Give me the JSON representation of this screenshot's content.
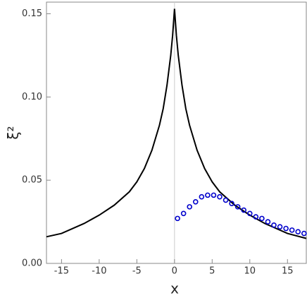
{
  "chart_data": {
    "type": "line_scatter",
    "xlabel": "x",
    "ylabel": "ξ²",
    "xlim": [
      -17,
      17.5
    ],
    "ylim": [
      0,
      0.157
    ],
    "xticks": [
      -15,
      -10,
      -5,
      0,
      5,
      10,
      15
    ],
    "yticks": [
      {
        "value": 0,
        "label": "0.00"
      },
      0.05,
      {
        "value": 0.1,
        "label": "0.10"
      },
      0.15
    ],
    "series": [
      {
        "kind": "line",
        "color": "#000000",
        "x": [
          -17,
          -15,
          -12,
          -10,
          -8,
          -6,
          -5,
          -4,
          -3,
          -2,
          -1.5,
          -1,
          -0.5,
          -0.25,
          0,
          0.25,
          0.5,
          1,
          1.5,
          2,
          3,
          4,
          5,
          6,
          8,
          10,
          12,
          15,
          17.5
        ],
        "values": [
          0.016,
          0.018,
          0.024,
          0.029,
          0.035,
          0.043,
          0.049,
          0.057,
          0.068,
          0.083,
          0.093,
          0.107,
          0.125,
          0.137,
          0.153,
          0.137,
          0.125,
          0.107,
          0.093,
          0.083,
          0.068,
          0.057,
          0.049,
          0.043,
          0.035,
          0.029,
          0.024,
          0.018,
          0.015
        ]
      },
      {
        "kind": "scatter",
        "color": "#0000cc",
        "x": [
          0.4,
          1.2,
          2.0,
          2.8,
          3.6,
          4.4,
          5.2,
          6.0,
          6.8,
          7.6,
          8.4,
          9.2,
          10.0,
          10.8,
          11.6,
          12.4,
          13.2,
          14.0,
          14.8,
          15.6,
          16.4,
          17.2
        ],
        "values": [
          0.027,
          0.03,
          0.034,
          0.037,
          0.04,
          0.041,
          0.041,
          0.04,
          0.038,
          0.036,
          0.034,
          0.032,
          0.03,
          0.028,
          0.027,
          0.025,
          0.023,
          0.022,
          0.021,
          0.02,
          0.019,
          0.018
        ]
      }
    ]
  }
}
